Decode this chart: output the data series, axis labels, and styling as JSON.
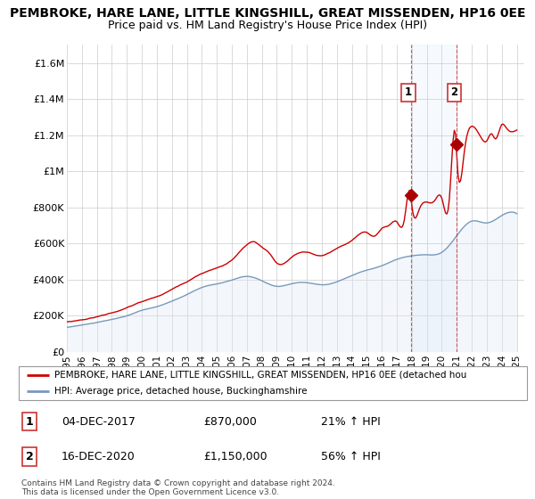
{
  "title": "PEMBROKE, HARE LANE, LITTLE KINGSHILL, GREAT MISSENDEN, HP16 0EE",
  "subtitle": "Price paid vs. HM Land Registry's House Price Index (HPI)",
  "title_fontsize": 10,
  "subtitle_fontsize": 9,
  "xlim_left": 1995.0,
  "xlim_right": 2025.5,
  "ylim_bottom": 0,
  "ylim_top": 1700000,
  "yticks": [
    0,
    200000,
    400000,
    600000,
    800000,
    1000000,
    1200000,
    1400000,
    1600000
  ],
  "ytick_labels": [
    "£0",
    "£200K",
    "£400K",
    "£600K",
    "£800K",
    "£1M",
    "£1.2M",
    "£1.4M",
    "£1.6M"
  ],
  "xticks": [
    1995,
    1996,
    1997,
    1998,
    1999,
    2000,
    2001,
    2002,
    2003,
    2004,
    2005,
    2006,
    2007,
    2008,
    2009,
    2010,
    2011,
    2012,
    2013,
    2014,
    2015,
    2016,
    2017,
    2018,
    2019,
    2020,
    2021,
    2022,
    2023,
    2024,
    2025
  ],
  "red_line_color": "#cc0000",
  "blue_line_color": "#7799bb",
  "blue_fill_color": "#dde8f5",
  "marker_color": "#aa0000",
  "vline_color": "#cc3333",
  "vline_style": "--",
  "span_color": "#ddeeff",
  "ann1_x": 2017.92,
  "ann1_y": 870000,
  "ann1_label": "1",
  "ann1_date": "04-DEC-2017",
  "ann1_price": "£870,000",
  "ann1_pct": "21% ↑ HPI",
  "ann2_x": 2020.96,
  "ann2_y": 1150000,
  "ann2_label": "2",
  "ann2_date": "16-DEC-2020",
  "ann2_price": "£1,150,000",
  "ann2_pct": "56% ↑ HPI",
  "legend_line1": "PEMBROKE, HARE LANE, LITTLE KINGSHILL, GREAT MISSENDEN, HP16 0EE (detached hou",
  "legend_line2": "HPI: Average price, detached house, Buckinghamshire",
  "footer": "Contains HM Land Registry data © Crown copyright and database right 2024.\nThis data is licensed under the Open Government Licence v3.0."
}
